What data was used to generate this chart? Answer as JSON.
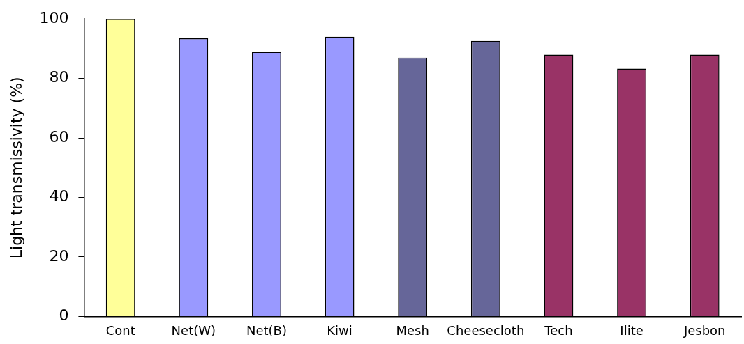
{
  "chart_data": {
    "type": "bar",
    "ylabel": "Light transmissivity (%)",
    "categories": [
      "Cont",
      "Net(W)",
      "Net(B)",
      "Kiwi",
      "Mesh",
      "Cheesecloth",
      "Tech",
      "Ilite",
      "Jesbon"
    ],
    "values": [
      100,
      93.5,
      88.9,
      94,
      87,
      92.6,
      88,
      83.3,
      88
    ],
    "colors": [
      "#ffff99",
      "#9999ff",
      "#9999ff",
      "#9999ff",
      "#666699",
      "#666699",
      "#993366",
      "#993366",
      "#993366"
    ],
    "ylim": [
      0,
      100
    ],
    "yticks": [
      0,
      20,
      40,
      60,
      80,
      100
    ],
    "grid": false,
    "legend": false
  }
}
